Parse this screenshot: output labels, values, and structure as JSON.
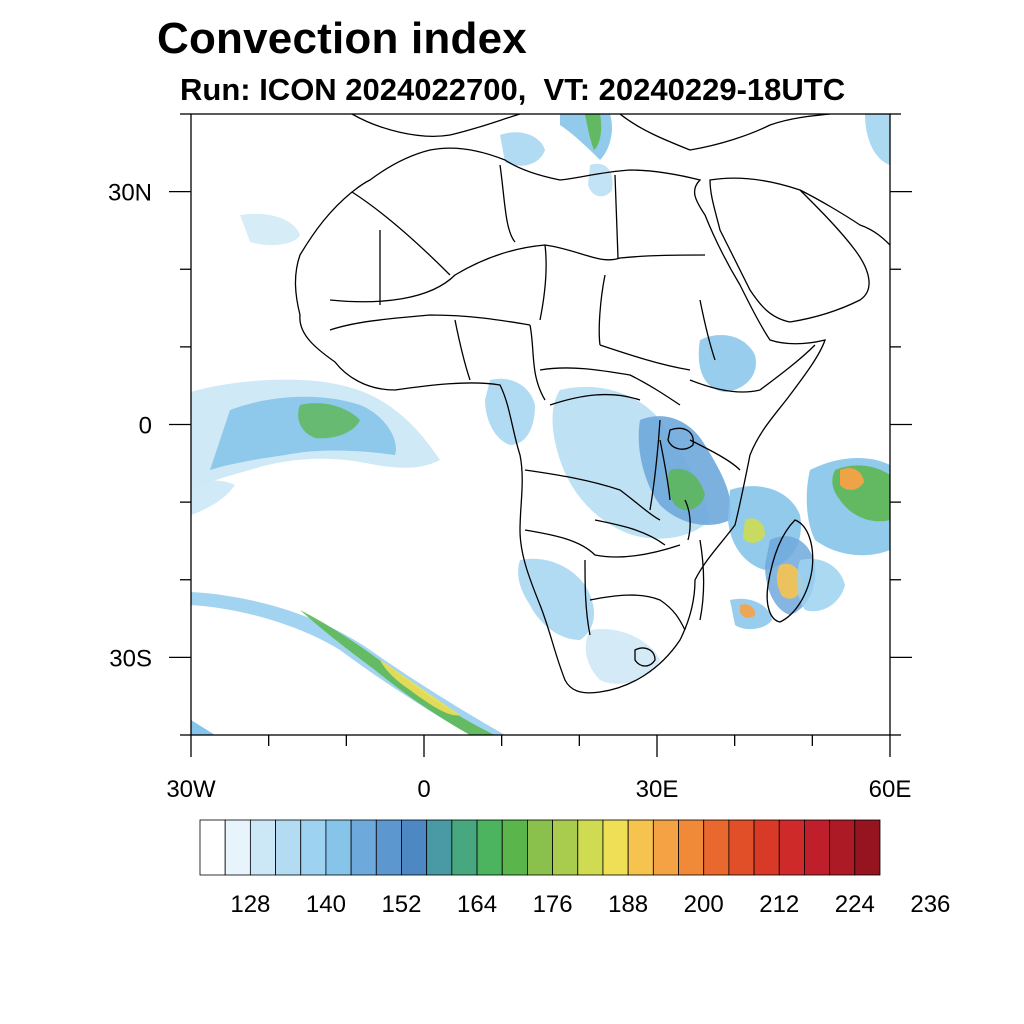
{
  "title": "Convection index",
  "subtitle": "Run: ICON 2024022700,  VT: 20240229-18UTC",
  "map": {
    "lon_range": [
      -30,
      60
    ],
    "lat_range": [
      -40,
      40
    ],
    "lon_ticks": [
      {
        "value": -30,
        "label": "30W"
      },
      {
        "value": 0,
        "label": "0"
      },
      {
        "value": 30,
        "label": "30E"
      },
      {
        "value": 60,
        "label": "60E"
      }
    ],
    "lat_ticks": [
      {
        "value": 30,
        "label": "30N"
      },
      {
        "value": 0,
        "label": "0"
      },
      {
        "value": -30,
        "label": "30S"
      }
    ]
  },
  "colorbar": {
    "colors": [
      "#ffffff",
      "#e8f4fb",
      "#cce8f6",
      "#b3dcf2",
      "#9dd2f0",
      "#86c4ea",
      "#6ea9dc",
      "#5d97cf",
      "#4d88c4",
      "#4a9aa5",
      "#47a87f",
      "#4cb35f",
      "#5ab64a",
      "#8ac14d",
      "#a9cc4f",
      "#cfdc52",
      "#eedf56",
      "#f6c34f",
      "#f5a244",
      "#f08a38",
      "#e9682e",
      "#e04f28",
      "#d93a27",
      "#cf2a2a",
      "#bf1f2b",
      "#ac1a26",
      "#951420"
    ],
    "labels": [
      "128",
      "140",
      "152",
      "164",
      "176",
      "188",
      "200",
      "212",
      "224",
      "236"
    ],
    "label_positions": [
      2,
      5,
      8,
      11,
      14,
      17,
      20,
      23,
      26,
      29
    ]
  }
}
